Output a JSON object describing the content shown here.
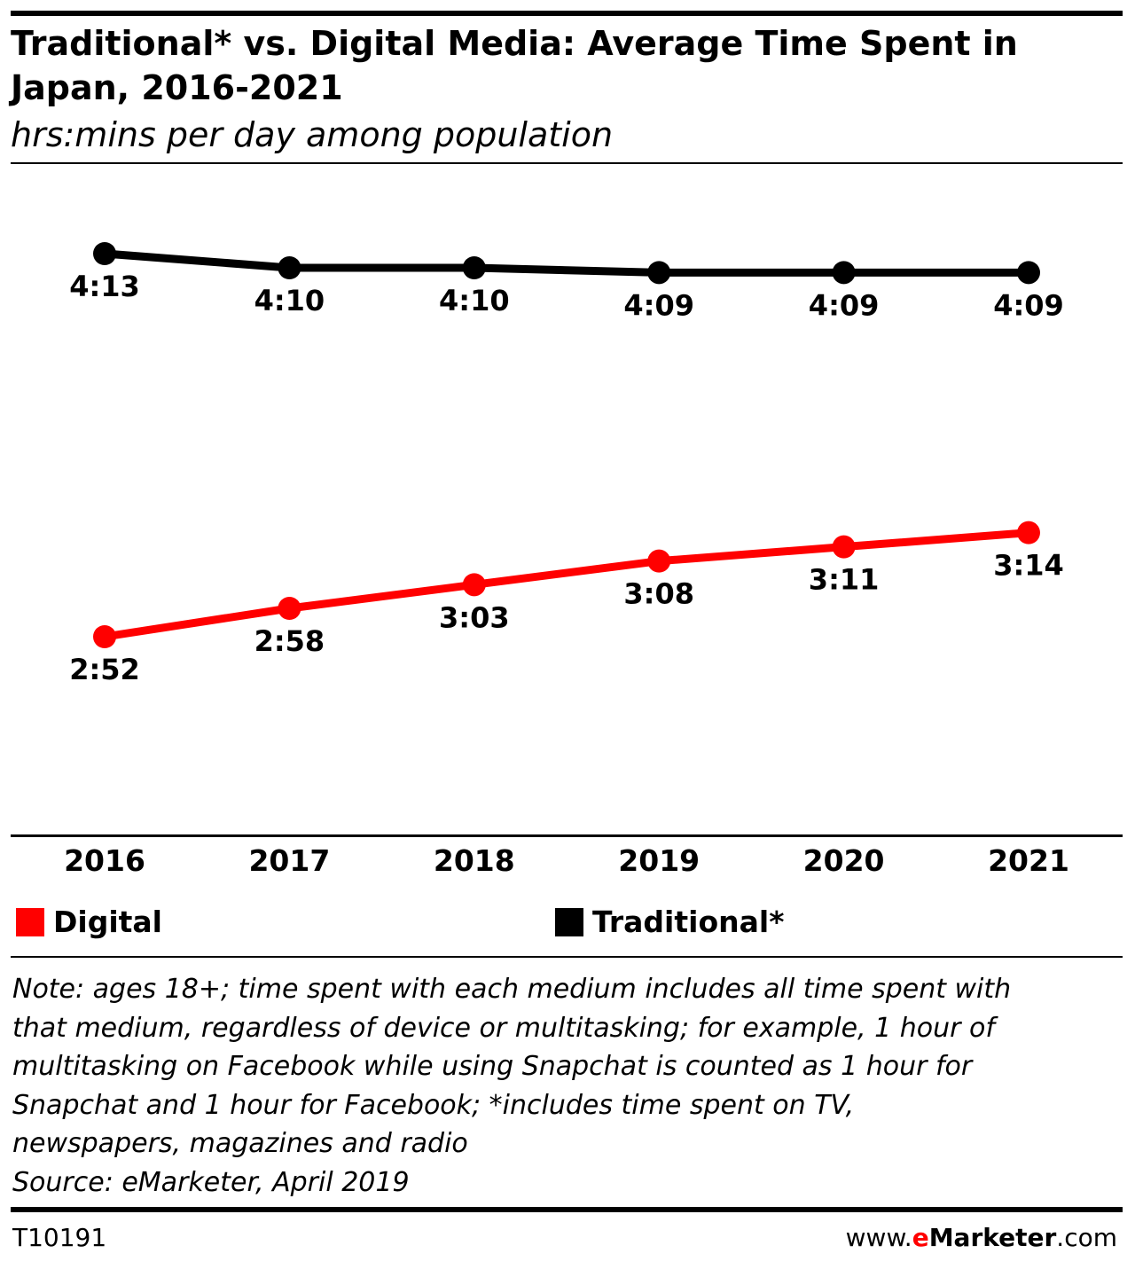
{
  "header": {
    "title": "Traditional* vs. Digital Media: Average Time Spent in Japan, 2016-2021",
    "subtitle": "hrs:mins per day among population"
  },
  "colors": {
    "accent": "#ff0000",
    "traditional": "#000000",
    "digital": "#ff0000"
  },
  "chart_data": {
    "type": "line",
    "title": "Traditional* vs. Digital Media: Average Time Spent in Japan, 2016-2021",
    "subtitle": "hrs:mins per day among population",
    "categories": [
      "2016",
      "2017",
      "2018",
      "2019",
      "2020",
      "2021"
    ],
    "series": [
      {
        "name": "Traditional*",
        "color": "#000000",
        "values": [
          "4:13",
          "4:10",
          "4:10",
          "4:09",
          "4:09",
          "4:09"
        ]
      },
      {
        "name": "Digital",
        "color": "#ff0000",
        "values": [
          "2:52",
          "2:58",
          "3:03",
          "3:08",
          "3:11",
          "3:14"
        ]
      }
    ],
    "grid": false,
    "legend_position": "bottom"
  },
  "legend": {
    "digital": "Digital",
    "traditional": "Traditional*"
  },
  "note": {
    "lines": [
      "Note: ages 18+; time spent with each medium includes all time spent with",
      "that medium, regardless of device or multitasking; for example, 1 hour of",
      "multitasking on Facebook while using Snapchat is counted as 1 hour for",
      "Snapchat and 1 hour for Facebook; *includes time spent on TV,",
      "newspapers, magazines and radio"
    ],
    "source": "Source: eMarketer, April 2019"
  },
  "footer": {
    "chart_id": "T10191",
    "brand_prefix": "www.",
    "brand_e": "e",
    "brand_name": "Marketer",
    "brand_suffix": ".com"
  }
}
